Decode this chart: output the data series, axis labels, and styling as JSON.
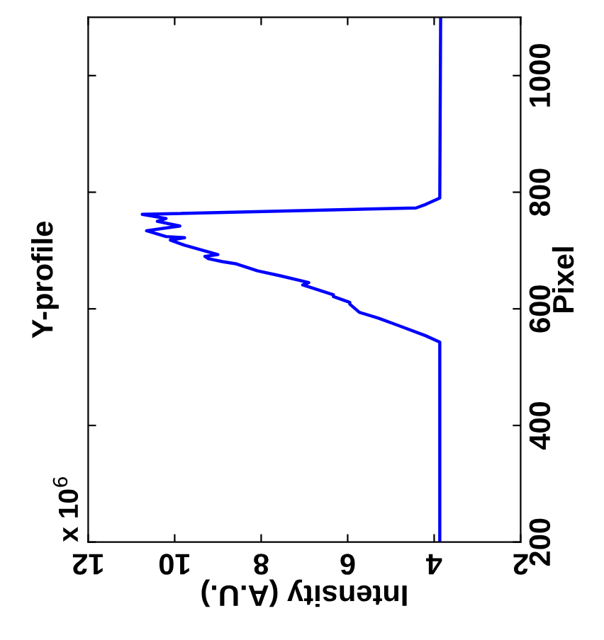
{
  "chart_data": {
    "type": "line",
    "title": "Y-profile",
    "xlabel": "Intensity (A.U.)",
    "ylabel": "Pixel",
    "annotations": [
      "x 10$^{6}$"
    ],
    "x": [
      3.87,
      3.87,
      4.2,
      4.85,
      5.29,
      5.73,
      5.95,
      5.95,
      6.33,
      6.33,
      7.04,
      6.9,
      7.58,
      8.08,
      8.57,
      8.9,
      9.22,
      9.3,
      9.0,
      9.77,
      10.1,
      9.77,
      10.2,
      10.65,
      9.88,
      10.4,
      10.2,
      10.75,
      4.42,
      4.2,
      3.87,
      3.85
    ],
    "series": [
      {
        "color": "#0000ff",
        "values": [
          200,
          543,
          554,
          572,
          584,
          594,
          608,
          611,
          621,
          624,
          641,
          645,
          657,
          665,
          677,
          681,
          686,
          690,
          693,
          709,
          718,
          722,
          724,
          734,
          742,
          750,
          755,
          762,
          773,
          779,
          790,
          1100
        ]
      }
    ],
    "xlim": [
      12,
      2
    ],
    "xticks": [
      2,
      4,
      6,
      8,
      10,
      12
    ],
    "ylim": [
      200,
      1100
    ],
    "yticks": [
      200,
      400,
      600,
      800,
      1000
    ],
    "grid": false,
    "legend": false,
    "line_style": "solid",
    "marker": "none"
  }
}
